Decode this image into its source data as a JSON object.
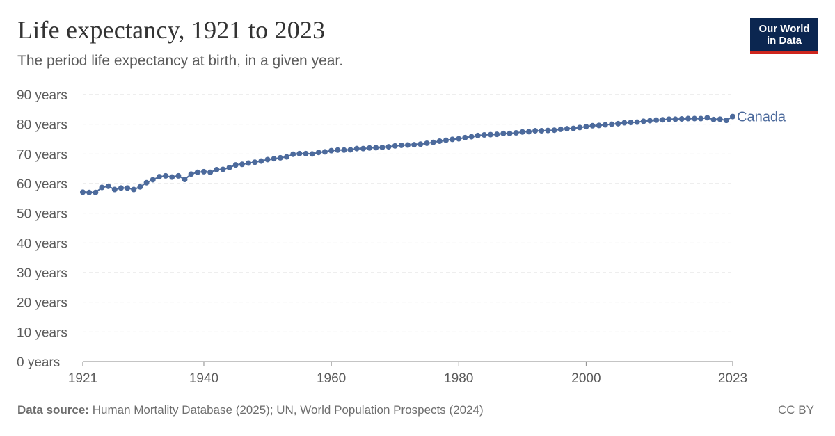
{
  "header": {
    "title": "Life expectancy, 1921 to 2023",
    "subtitle": "The period life expectancy at birth, in a given year."
  },
  "logo": {
    "line1": "Our World",
    "line2": "in Data"
  },
  "footer": {
    "source_label": "Data source:",
    "source_text": "Human Mortality Database (2025); UN, World Population Prospects (2024)",
    "license": "CC BY"
  },
  "colors": {
    "series": "#4c6a9c",
    "grid": "#dddddd",
    "axis": "#666666"
  },
  "chart_data": {
    "type": "line",
    "title": "Life expectancy, 1921 to 2023",
    "subtitle": "The period life expectancy at birth, in a given year.",
    "ylim": [
      0,
      90
    ],
    "xlim": [
      1921,
      2023
    ],
    "y_ticks": [
      0,
      10,
      20,
      30,
      40,
      50,
      60,
      70,
      80,
      90
    ],
    "y_tick_labels": [
      "0 years",
      "10 years",
      "20 years",
      "30 years",
      "40 years",
      "50 years",
      "60 years",
      "70 years",
      "80 years",
      "90 years"
    ],
    "x_ticks": [
      1921,
      1940,
      1960,
      1980,
      2000,
      2023
    ],
    "x_tick_labels": [
      "1921",
      "1940",
      "1960",
      "1980",
      "2000",
      "2023"
    ],
    "grid": "horizontal dashed",
    "series": [
      {
        "name": "Canada",
        "x": [
          1921,
          1922,
          1923,
          1924,
          1925,
          1926,
          1927,
          1928,
          1929,
          1930,
          1931,
          1932,
          1933,
          1934,
          1935,
          1936,
          1937,
          1938,
          1939,
          1940,
          1941,
          1942,
          1943,
          1944,
          1945,
          1946,
          1947,
          1948,
          1949,
          1950,
          1951,
          1952,
          1953,
          1954,
          1955,
          1956,
          1957,
          1958,
          1959,
          1960,
          1961,
          1962,
          1963,
          1964,
          1965,
          1966,
          1967,
          1968,
          1969,
          1970,
          1971,
          1972,
          1973,
          1974,
          1975,
          1976,
          1977,
          1978,
          1979,
          1980,
          1981,
          1982,
          1983,
          1984,
          1985,
          1986,
          1987,
          1988,
          1989,
          1990,
          1991,
          1992,
          1993,
          1994,
          1995,
          1996,
          1997,
          1998,
          1999,
          2000,
          2001,
          2002,
          2003,
          2004,
          2005,
          2006,
          2007,
          2008,
          2009,
          2010,
          2011,
          2012,
          2013,
          2014,
          2015,
          2016,
          2017,
          2018,
          2019,
          2020,
          2021,
          2022,
          2023
        ],
        "values": [
          57.1,
          57.0,
          57.0,
          58.7,
          59.1,
          58.0,
          58.5,
          58.5,
          58.0,
          58.9,
          60.3,
          61.3,
          62.3,
          62.6,
          62.2,
          62.6,
          61.4,
          63.2,
          63.8,
          64.0,
          63.8,
          64.7,
          64.8,
          65.4,
          66.3,
          66.5,
          66.9,
          67.2,
          67.6,
          68.1,
          68.4,
          68.7,
          69.0,
          69.9,
          70.1,
          70.1,
          70.0,
          70.5,
          70.7,
          71.1,
          71.3,
          71.3,
          71.4,
          71.8,
          71.8,
          72.0,
          72.1,
          72.2,
          72.4,
          72.7,
          72.9,
          73.0,
          73.1,
          73.3,
          73.6,
          73.9,
          74.3,
          74.6,
          74.9,
          75.1,
          75.5,
          75.8,
          76.2,
          76.4,
          76.5,
          76.6,
          76.9,
          76.9,
          77.1,
          77.4,
          77.5,
          77.8,
          77.8,
          77.9,
          78.0,
          78.3,
          78.5,
          78.6,
          78.9,
          79.2,
          79.5,
          79.6,
          79.8,
          80.0,
          80.2,
          80.5,
          80.6,
          80.7,
          81.0,
          81.2,
          81.4,
          81.5,
          81.7,
          81.7,
          81.8,
          81.9,
          81.9,
          81.9,
          82.2,
          81.6,
          81.7,
          81.3,
          82.6
        ]
      }
    ]
  }
}
